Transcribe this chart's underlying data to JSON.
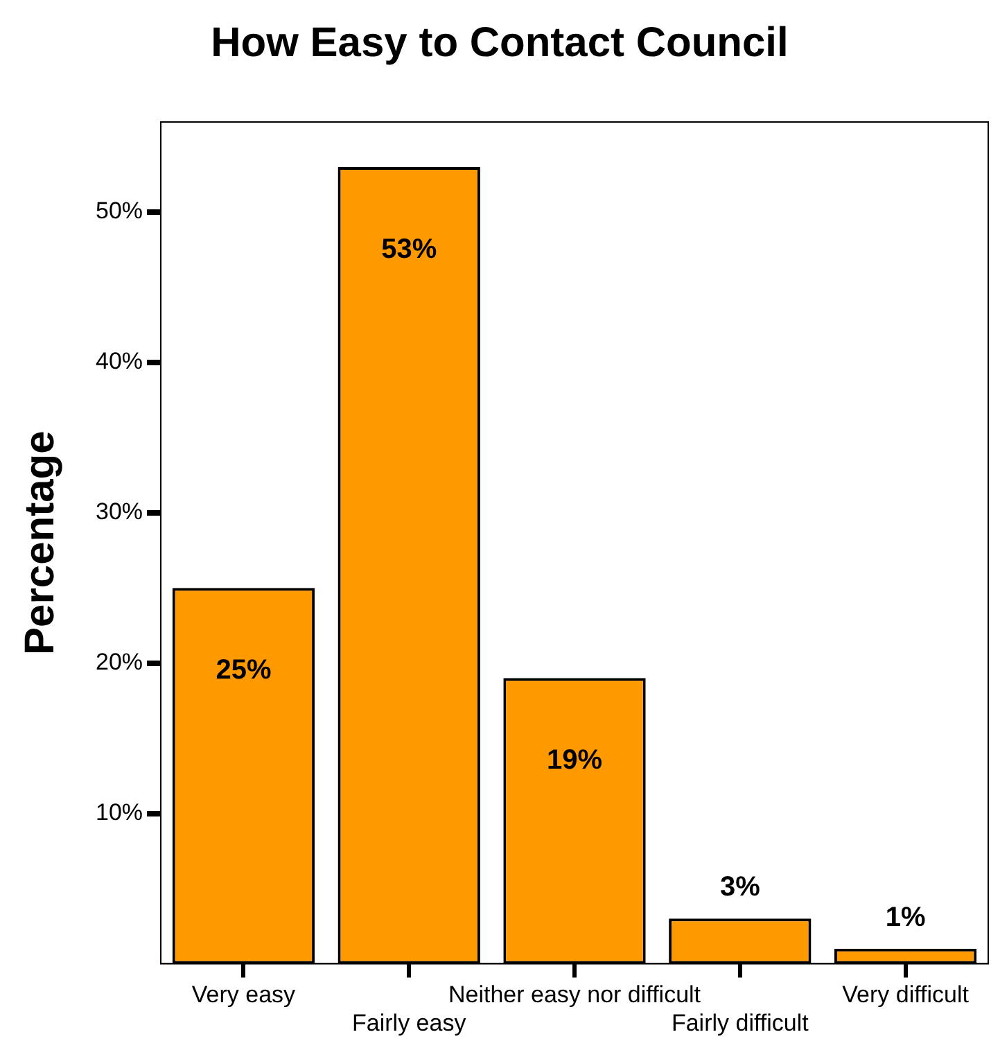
{
  "chart_data": {
    "type": "bar",
    "title": "How Easy to Contact Council",
    "ylabel": "Percentage",
    "categories": [
      "Very easy",
      "Fairly easy",
      "Neither easy nor difficult",
      "Fairly difficult",
      "Very difficult"
    ],
    "values": [
      25,
      53,
      19,
      3,
      1
    ],
    "color": "#ff9900",
    "ylim": [
      0,
      56
    ],
    "yticks": [
      {
        "value": 10,
        "label": "10%"
      },
      {
        "value": 20,
        "label": "20%"
      },
      {
        "value": 30,
        "label": "30%"
      },
      {
        "value": 40,
        "label": "40%"
      },
      {
        "value": 50,
        "label": "50%"
      }
    ],
    "value_labels": [
      "25%",
      "53%",
      "19%",
      "3%",
      "1%"
    ],
    "grid": false,
    "legend": false
  }
}
